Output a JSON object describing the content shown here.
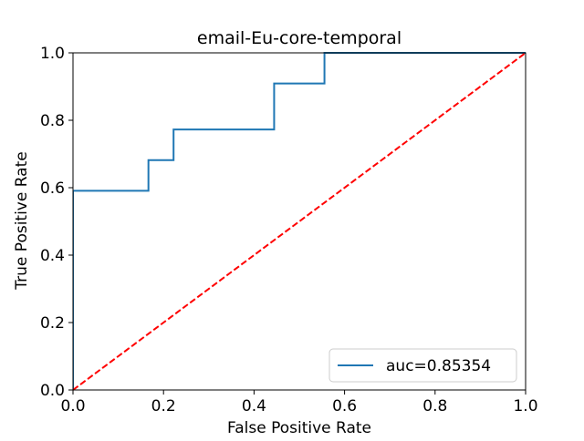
{
  "chart_data": {
    "type": "line",
    "title": "email-Eu-core-temporal",
    "xlabel": "False Positive Rate",
    "ylabel": "True Positive Rate",
    "xlim": [
      0.0,
      1.0
    ],
    "ylim": [
      0.0,
      1.0
    ],
    "xticks": [
      0.0,
      0.2,
      0.4,
      0.6,
      0.8,
      1.0
    ],
    "yticks": [
      0.0,
      0.2,
      0.4,
      0.6,
      0.8,
      1.0
    ],
    "xtick_labels": [
      "0.0",
      "0.2",
      "0.4",
      "0.6",
      "0.8",
      "1.0"
    ],
    "ytick_labels": [
      "0.0",
      "0.2",
      "0.4",
      "0.6",
      "0.8",
      "1.0"
    ],
    "grid": false,
    "legend_position": "lower-right",
    "series": [
      {
        "name": "auc=0.85354",
        "color": "#1f77b4",
        "style": "solid",
        "x": [
          0.0,
          0.0,
          0.1667,
          0.1667,
          0.2222,
          0.2222,
          0.4444,
          0.4444,
          0.5556,
          0.5556,
          1.0
        ],
        "y": [
          0.0,
          0.5909,
          0.5909,
          0.6818,
          0.6818,
          0.7727,
          0.7727,
          0.9091,
          0.9091,
          1.0,
          1.0
        ]
      },
      {
        "color": "#ff0000",
        "style": "dashed",
        "x": [
          0.0,
          1.0
        ],
        "y": [
          0.0,
          1.0
        ]
      }
    ]
  }
}
